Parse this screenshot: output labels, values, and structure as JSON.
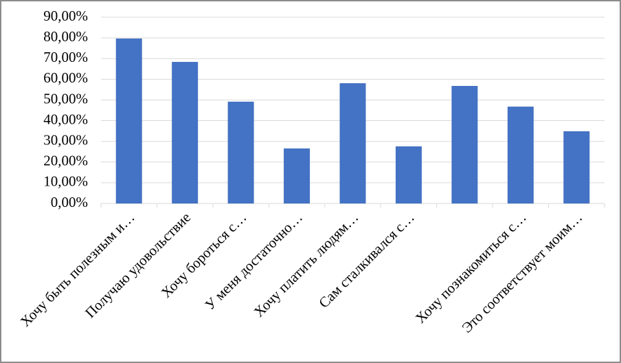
{
  "chart_data": {
    "type": "bar",
    "categories": [
      "Хочу быть полезным и…",
      "Получаю удовольствие",
      "Хочу бороться с…",
      "У меня достаточно…",
      "Хочу платить людям…",
      "Сам сталкивался с…",
      null,
      "Хочу познакомиться с…",
      "Это соответствует моим…"
    ],
    "values": [
      79.7,
      68.4,
      49.2,
      26.6,
      58.1,
      27.6,
      56.8,
      46.8,
      34.9
    ],
    "color": "#4472c4",
    "ylim": [
      0,
      90
    ],
    "yticks": [
      {
        "value": 0,
        "label": "0,00%"
      },
      {
        "value": 10,
        "label": "10,00%"
      },
      {
        "value": 20,
        "label": "20,00%"
      },
      {
        "value": 30,
        "label": "30,00%"
      },
      {
        "value": 40,
        "label": "40,00%"
      },
      {
        "value": 50,
        "label": "50,00%"
      },
      {
        "value": 60,
        "label": "60,00%"
      },
      {
        "value": 70,
        "label": "70,00%"
      },
      {
        "value": 80,
        "label": "80,00%"
      },
      {
        "value": 90,
        "label": "90,00%"
      }
    ],
    "grid": true
  }
}
